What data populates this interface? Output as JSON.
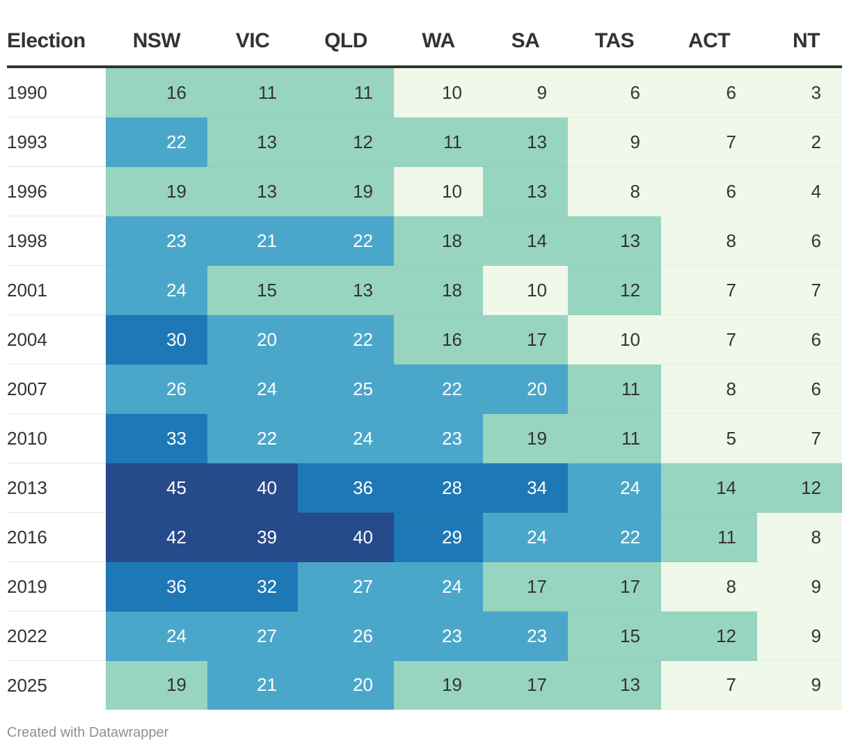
{
  "chart_data": {
    "type": "table",
    "title": "",
    "columns": [
      "Election",
      "NSW",
      "VIC",
      "QLD",
      "WA",
      "SA",
      "TAS",
      "ACT",
      "NT"
    ],
    "rows": [
      {
        "year": "1990",
        "values": [
          16,
          11,
          11,
          10,
          9,
          6,
          6,
          3
        ]
      },
      {
        "year": "1993",
        "values": [
          22,
          13,
          12,
          11,
          13,
          9,
          7,
          2
        ]
      },
      {
        "year": "1996",
        "values": [
          19,
          13,
          19,
          10,
          13,
          8,
          6,
          4
        ]
      },
      {
        "year": "1998",
        "values": [
          23,
          21,
          22,
          18,
          14,
          13,
          8,
          6
        ]
      },
      {
        "year": "2001",
        "values": [
          24,
          15,
          13,
          18,
          10,
          12,
          7,
          7
        ]
      },
      {
        "year": "2004",
        "values": [
          30,
          20,
          22,
          16,
          17,
          10,
          7,
          6
        ]
      },
      {
        "year": "2007",
        "values": [
          26,
          24,
          25,
          22,
          20,
          11,
          8,
          6
        ]
      },
      {
        "year": "2010",
        "values": [
          33,
          22,
          24,
          23,
          19,
          11,
          5,
          7
        ]
      },
      {
        "year": "2013",
        "values": [
          45,
          40,
          36,
          28,
          34,
          24,
          14,
          12
        ]
      },
      {
        "year": "2016",
        "values": [
          42,
          39,
          40,
          29,
          24,
          22,
          11,
          8
        ]
      },
      {
        "year": "2019",
        "values": [
          36,
          32,
          27,
          24,
          17,
          17,
          8,
          9
        ]
      },
      {
        "year": "2022",
        "values": [
          24,
          27,
          26,
          23,
          23,
          15,
          12,
          9
        ]
      },
      {
        "year": "2025",
        "values": [
          19,
          21,
          20,
          19,
          17,
          13,
          7,
          9
        ]
      }
    ],
    "color_scale": [
      {
        "max": 10,
        "color": "#eff8e9",
        "text": "#333333"
      },
      {
        "max": 19,
        "color": "#97d5c0",
        "text": "#333333"
      },
      {
        "max": 27,
        "color": "#4ba7ca",
        "text": "#ffffff"
      },
      {
        "max": 36,
        "color": "#1f78b6",
        "text": "#ffffff"
      },
      {
        "max": 100,
        "color": "#274a8b",
        "text": "#ffffff"
      }
    ]
  },
  "footer": "Created with Datawrapper"
}
